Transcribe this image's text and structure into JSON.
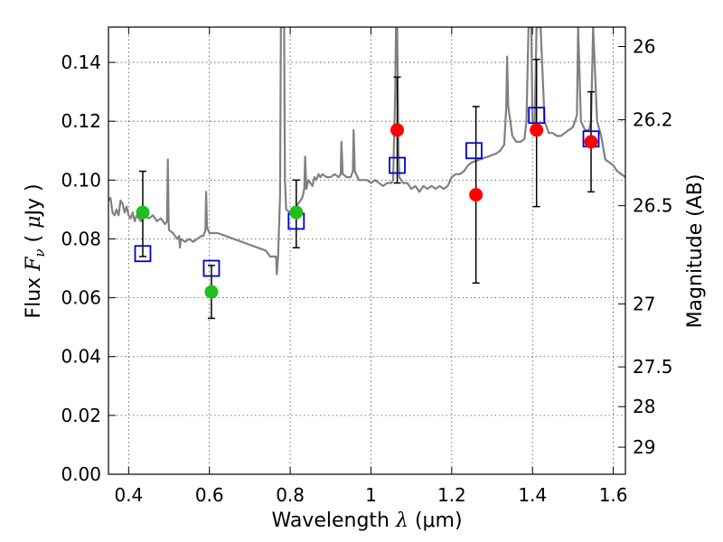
{
  "chart_data": {
    "type": "scatter",
    "title": "",
    "xlabel_text": "Wavelength",
    "xlabel_symbol": "λ",
    "xlabel_unit": "(μm)",
    "ylabel_text": "Flux",
    "ylabel_symbol": "F",
    "ylabel_subscript": "ν",
    "ylabel_unit_open": "(",
    "ylabel_unit_symbol": "μ",
    "ylabel_unit_rest": "Jy )",
    "y2label": "Magnitude (AB)",
    "xlim": [
      0.35,
      1.63
    ],
    "ylim": [
      0.0,
      0.152
    ],
    "grid": true,
    "xticks": [
      0.4,
      0.6,
      0.8,
      1.0,
      1.2,
      1.4,
      1.6
    ],
    "xtick_labels": [
      "0.4",
      "0.6",
      "0.8",
      "1",
      "1.2",
      "1.4",
      "1.6"
    ],
    "yticks": [
      0.0,
      0.02,
      0.04,
      0.06,
      0.08,
      0.1,
      0.12,
      0.14
    ],
    "ytick_labels": [
      "0.00",
      "0.02",
      "0.04",
      "0.06",
      "0.08",
      "0.10",
      "0.12",
      "0.14"
    ],
    "y2ticks": [
      {
        "flux": 0.1454,
        "label": "26"
      },
      {
        "flux": 0.1205,
        "label": "26.2"
      },
      {
        "flux": 0.0913,
        "label": "26.5"
      },
      {
        "flux": 0.0579,
        "label": "27"
      },
      {
        "flux": 0.0365,
        "label": "27.5"
      },
      {
        "flux": 0.023,
        "label": "28"
      },
      {
        "flux": 0.0092,
        "label": "29"
      }
    ],
    "colors": {
      "template": "#808080",
      "green": "#1fbf1f",
      "red": "#ff0000",
      "model": "#0000cc",
      "errorbar": "#000000"
    },
    "series": [
      {
        "name": "template spectrum",
        "kind": "line",
        "points": [
          [
            0.35,
            0.093
          ],
          [
            0.355,
            0.094
          ],
          [
            0.36,
            0.089
          ],
          [
            0.365,
            0.088
          ],
          [
            0.37,
            0.09
          ],
          [
            0.375,
            0.088
          ],
          [
            0.38,
            0.093
          ],
          [
            0.385,
            0.092
          ],
          [
            0.39,
            0.089
          ],
          [
            0.395,
            0.091
          ],
          [
            0.4,
            0.088
          ],
          [
            0.405,
            0.087
          ],
          [
            0.41,
            0.089
          ],
          [
            0.415,
            0.086
          ],
          [
            0.42,
            0.088
          ],
          [
            0.43,
            0.086
          ],
          [
            0.44,
            0.088
          ],
          [
            0.45,
            0.087
          ],
          [
            0.46,
            0.088
          ],
          [
            0.47,
            0.086
          ],
          [
            0.48,
            0.087
          ],
          [
            0.49,
            0.085
          ],
          [
            0.495,
            0.086
          ],
          [
            0.497,
            0.107
          ],
          [
            0.499,
            0.086
          ],
          [
            0.5,
            0.083
          ],
          [
            0.51,
            0.082
          ],
          [
            0.52,
            0.08
          ],
          [
            0.525,
            0.081
          ],
          [
            0.527,
            0.077
          ],
          [
            0.529,
            0.08
          ],
          [
            0.54,
            0.079
          ],
          [
            0.55,
            0.08
          ],
          [
            0.56,
            0.079
          ],
          [
            0.57,
            0.08
          ],
          [
            0.58,
            0.081
          ],
          [
            0.585,
            0.081
          ],
          [
            0.59,
            0.083
          ],
          [
            0.592,
            0.096
          ],
          [
            0.594,
            0.084
          ],
          [
            0.6,
            0.082
          ],
          [
            0.62,
            0.082
          ],
          [
            0.64,
            0.081
          ],
          [
            0.66,
            0.08
          ],
          [
            0.68,
            0.079
          ],
          [
            0.7,
            0.078
          ],
          [
            0.72,
            0.077
          ],
          [
            0.74,
            0.076
          ],
          [
            0.75,
            0.074
          ],
          [
            0.76,
            0.074
          ],
          [
            0.765,
            0.074
          ],
          [
            0.767,
            0.068
          ],
          [
            0.77,
            0.074
          ],
          [
            0.775,
            0.095
          ],
          [
            0.777,
            0.152
          ],
          [
            0.785,
            0.152
          ],
          [
            0.787,
            0.1
          ],
          [
            0.79,
            0.09
          ],
          [
            0.8,
            0.089
          ],
          [
            0.805,
            0.09
          ],
          [
            0.81,
            0.089
          ],
          [
            0.815,
            0.091
          ],
          [
            0.82,
            0.092
          ],
          [
            0.83,
            0.094
          ],
          [
            0.835,
            0.097
          ],
          [
            0.837,
            0.108
          ],
          [
            0.84,
            0.097
          ],
          [
            0.845,
            0.1
          ],
          [
            0.855,
            0.098
          ],
          [
            0.86,
            0.101
          ],
          [
            0.865,
            0.1
          ],
          [
            0.87,
            0.102
          ],
          [
            0.875,
            0.101
          ],
          [
            0.88,
            0.102
          ],
          [
            0.89,
            0.101
          ],
          [
            0.9,
            0.101
          ],
          [
            0.91,
            0.102
          ],
          [
            0.92,
            0.101
          ],
          [
            0.925,
            0.102
          ],
          [
            0.927,
            0.113
          ],
          [
            0.93,
            0.102
          ],
          [
            0.94,
            0.101
          ],
          [
            0.95,
            0.101
          ],
          [
            0.955,
            0.103
          ],
          [
            0.957,
            0.117
          ],
          [
            0.96,
            0.103
          ],
          [
            0.97,
            0.1
          ],
          [
            0.98,
            0.1
          ],
          [
            0.99,
            0.1
          ],
          [
            1.0,
            0.099
          ],
          [
            1.01,
            0.1
          ],
          [
            1.02,
            0.099
          ],
          [
            1.03,
            0.098
          ],
          [
            1.04,
            0.099
          ],
          [
            1.05,
            0.099
          ],
          [
            1.055,
            0.1
          ],
          [
            1.06,
            0.13
          ],
          [
            1.062,
            0.152
          ],
          [
            1.065,
            0.152
          ],
          [
            1.068,
            0.11
          ],
          [
            1.07,
            0.101
          ],
          [
            1.08,
            0.099
          ],
          [
            1.09,
            0.099
          ],
          [
            1.1,
            0.097
          ],
          [
            1.11,
            0.098
          ],
          [
            1.12,
            0.096
          ],
          [
            1.13,
            0.098
          ],
          [
            1.14,
            0.097
          ],
          [
            1.15,
            0.098
          ],
          [
            1.16,
            0.097
          ],
          [
            1.17,
            0.098
          ],
          [
            1.18,
            0.097
          ],
          [
            1.19,
            0.098
          ],
          [
            1.2,
            0.101
          ],
          [
            1.21,
            0.102
          ],
          [
            1.22,
            0.102
          ],
          [
            1.23,
            0.103
          ],
          [
            1.24,
            0.105
          ],
          [
            1.25,
            0.106
          ],
          [
            1.27,
            0.107
          ],
          [
            1.29,
            0.108
          ],
          [
            1.31,
            0.109
          ],
          [
            1.32,
            0.11
          ],
          [
            1.33,
            0.112
          ],
          [
            1.335,
            0.125
          ],
          [
            1.337,
            0.142
          ],
          [
            1.34,
            0.125
          ],
          [
            1.35,
            0.115
          ],
          [
            1.36,
            0.113
          ],
          [
            1.37,
            0.113
          ],
          [
            1.38,
            0.114
          ],
          [
            1.385,
            0.12
          ],
          [
            1.39,
            0.152
          ],
          [
            1.397,
            0.152
          ],
          [
            1.4,
            0.12
          ],
          [
            1.405,
            0.118
          ],
          [
            1.41,
            0.152
          ],
          [
            1.42,
            0.152
          ],
          [
            1.43,
            0.12
          ],
          [
            1.44,
            0.116
          ],
          [
            1.45,
            0.116
          ],
          [
            1.46,
            0.115
          ],
          [
            1.47,
            0.115
          ],
          [
            1.48,
            0.116
          ],
          [
            1.49,
            0.117
          ],
          [
            1.5,
            0.118
          ],
          [
            1.51,
            0.122
          ],
          [
            1.513,
            0.152
          ],
          [
            1.52,
            0.12
          ],
          [
            1.53,
            0.117
          ],
          [
            1.54,
            0.117
          ],
          [
            1.545,
            0.12
          ],
          [
            1.55,
            0.152
          ],
          [
            1.56,
            0.12
          ],
          [
            1.57,
            0.115
          ],
          [
            1.58,
            0.107
          ],
          [
            1.59,
            0.106
          ],
          [
            1.6,
            0.105
          ],
          [
            1.61,
            0.103
          ],
          [
            1.62,
            0.102
          ],
          [
            1.63,
            0.101
          ]
        ]
      },
      {
        "name": "observed (green)",
        "kind": "points",
        "points": [
          {
            "x": 0.435,
            "y": 0.089,
            "ylo": 0.074,
            "yhi": 0.103
          },
          {
            "x": 0.605,
            "y": 0.062,
            "ylo": 0.053,
            "yhi": 0.071
          },
          {
            "x": 0.815,
            "y": 0.089,
            "ylo": 0.077,
            "yhi": 0.1
          }
        ]
      },
      {
        "name": "observed (red)",
        "kind": "points",
        "points": [
          {
            "x": 1.065,
            "y": 0.117,
            "ylo": 0.099,
            "yhi": 0.135
          },
          {
            "x": 1.26,
            "y": 0.095,
            "ylo": 0.065,
            "yhi": 0.125
          },
          {
            "x": 1.41,
            "y": 0.117,
            "ylo": 0.091,
            "yhi": 0.141
          },
          {
            "x": 1.545,
            "y": 0.113,
            "ylo": 0.096,
            "yhi": 0.13
          }
        ]
      },
      {
        "name": "model photometry",
        "kind": "squares",
        "points": [
          {
            "x": 0.435,
            "y": 0.075
          },
          {
            "x": 0.605,
            "y": 0.07
          },
          {
            "x": 0.815,
            "y": 0.086
          },
          {
            "x": 1.065,
            "y": 0.105
          },
          {
            "x": 1.255,
            "y": 0.11
          },
          {
            "x": 1.41,
            "y": 0.122
          },
          {
            "x": 1.545,
            "y": 0.114
          }
        ]
      }
    ]
  }
}
